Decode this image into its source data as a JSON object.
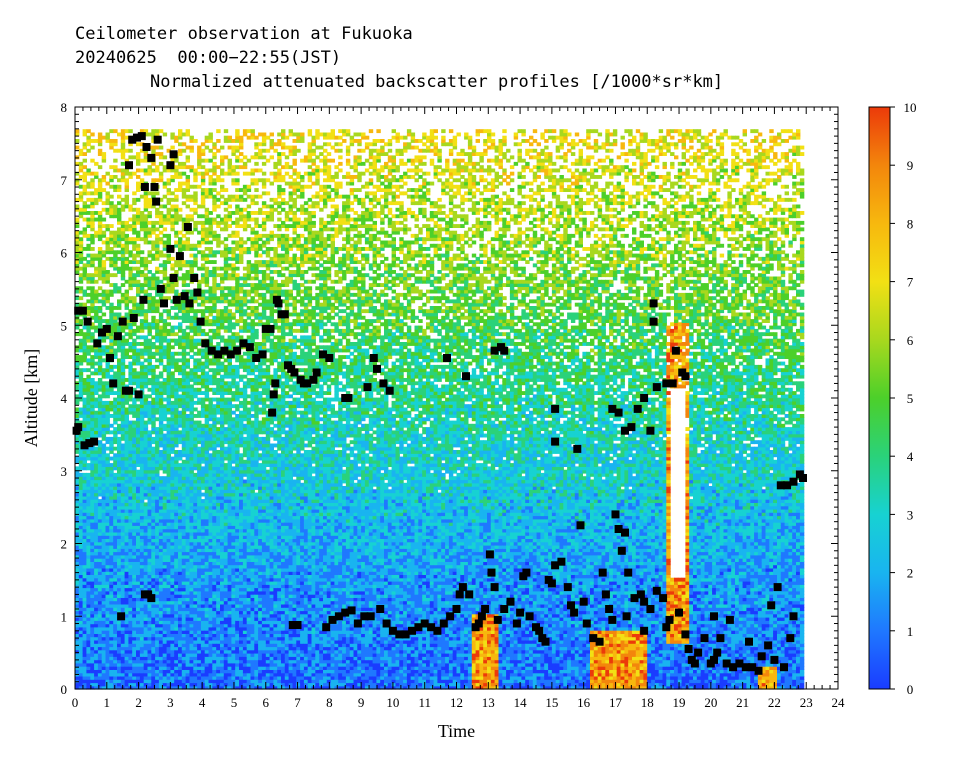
{
  "header": {
    "line1": "Ceilometer observation at Fukuoka",
    "line2": "20240625  00:00−22:55(JST)",
    "line3": "Normalized attenuated backscatter profiles [/1000*sr*km]"
  },
  "chart_data": {
    "type": "heatmap",
    "xlabel": "Time",
    "ylabel": "Altitude [km]",
    "xlim": [
      0,
      24
    ],
    "ylim": [
      0,
      8
    ],
    "x_ticks": [
      "0",
      "1",
      "2",
      "3",
      "4",
      "5",
      "6",
      "7",
      "8",
      "9",
      "10",
      "11",
      "12",
      "13",
      "14",
      "15",
      "16",
      "17",
      "18",
      "19",
      "20",
      "21",
      "22",
      "23",
      "24"
    ],
    "y_ticks": [
      "0",
      "1",
      "2",
      "3",
      "4",
      "5",
      "6",
      "7",
      "8"
    ],
    "data_time_range": [
      0,
      22.92
    ],
    "data_altitude_max": 7.67,
    "colorbar": {
      "min": 0,
      "max": 10,
      "ticks": [
        "0",
        "1",
        "2",
        "3",
        "4",
        "5",
        "6",
        "7",
        "8",
        "9",
        "10"
      ],
      "colors": [
        "#1a3cff",
        "#1f78ff",
        "#19b4f0",
        "#17d2d2",
        "#2ad27a",
        "#4cd02a",
        "#a8d81e",
        "#f2e014",
        "#f7b80e",
        "#f3860c",
        "#ec3a0a"
      ]
    },
    "cloud_base_points": [
      [
        0.05,
        3.55
      ],
      [
        0.1,
        3.6
      ],
      [
        0.3,
        3.35
      ],
      [
        0.45,
        3.38
      ],
      [
        0.6,
        3.4
      ],
      [
        0.1,
        5.2
      ],
      [
        0.25,
        5.2
      ],
      [
        0.4,
        5.05
      ],
      [
        0.7,
        4.75
      ],
      [
        0.85,
        4.9
      ],
      [
        1.0,
        4.95
      ],
      [
        1.1,
        4.55
      ],
      [
        1.2,
        4.2
      ],
      [
        1.35,
        4.85
      ],
      [
        1.5,
        5.05
      ],
      [
        1.6,
        4.1
      ],
      [
        1.7,
        4.1
      ],
      [
        1.85,
        5.1
      ],
      [
        2.0,
        4.05
      ],
      [
        2.15,
        5.35
      ],
      [
        1.8,
        7.55
      ],
      [
        1.95,
        7.58
      ],
      [
        2.1,
        7.6
      ],
      [
        2.25,
        7.45
      ],
      [
        1.7,
        7.2
      ],
      [
        2.4,
        7.3
      ],
      [
        2.6,
        7.55
      ],
      [
        2.2,
        6.9
      ],
      [
        2.5,
        6.9
      ],
      [
        2.55,
        6.7
      ],
      [
        3.0,
        7.2
      ],
      [
        3.1,
        7.35
      ],
      [
        2.7,
        5.5
      ],
      [
        2.8,
        5.3
      ],
      [
        3.0,
        6.05
      ],
      [
        3.1,
        5.65
      ],
      [
        3.2,
        5.35
      ],
      [
        3.3,
        5.95
      ],
      [
        3.45,
        5.4
      ],
      [
        3.55,
        6.35
      ],
      [
        3.6,
        5.3
      ],
      [
        3.75,
        5.65
      ],
      [
        3.85,
        5.45
      ],
      [
        3.95,
        5.05
      ],
      [
        4.1,
        4.75
      ],
      [
        4.3,
        4.65
      ],
      [
        4.5,
        4.6
      ],
      [
        4.7,
        4.65
      ],
      [
        4.9,
        4.6
      ],
      [
        5.1,
        4.65
      ],
      [
        5.3,
        4.75
      ],
      [
        5.5,
        4.7
      ],
      [
        5.7,
        4.55
      ],
      [
        5.9,
        4.6
      ],
      [
        6.0,
        4.95
      ],
      [
        6.15,
        4.95
      ],
      [
        6.2,
        3.8
      ],
      [
        6.25,
        4.05
      ],
      [
        6.3,
        4.2
      ],
      [
        6.35,
        5.35
      ],
      [
        6.4,
        5.3
      ],
      [
        6.5,
        5.15
      ],
      [
        6.6,
        5.15
      ],
      [
        6.7,
        4.45
      ],
      [
        6.8,
        4.4
      ],
      [
        6.9,
        4.35
      ],
      [
        7.1,
        4.25
      ],
      [
        7.3,
        4.2
      ],
      [
        7.5,
        4.25
      ],
      [
        7.6,
        4.35
      ],
      [
        7.8,
        4.6
      ],
      [
        8.0,
        4.55
      ],
      [
        7.2,
        4.2
      ],
      [
        8.6,
        4.0
      ],
      [
        8.5,
        4.0
      ],
      [
        9.2,
        4.15
      ],
      [
        9.4,
        4.55
      ],
      [
        9.5,
        4.4
      ],
      [
        9.7,
        4.2
      ],
      [
        9.9,
        4.1
      ],
      [
        11.7,
        4.55
      ],
      [
        12.3,
        4.3
      ],
      [
        13.2,
        4.65
      ],
      [
        13.4,
        4.7
      ],
      [
        13.5,
        4.65
      ],
      [
        15.1,
        3.85
      ],
      [
        15.1,
        3.4
      ],
      [
        15.8,
        3.3
      ],
      [
        16.9,
        3.85
      ],
      [
        17.1,
        3.8
      ],
      [
        17.3,
        3.55
      ],
      [
        17.5,
        3.6
      ],
      [
        17.7,
        3.85
      ],
      [
        17.9,
        4.0
      ],
      [
        18.1,
        3.55
      ],
      [
        18.3,
        4.15
      ],
      [
        18.2,
        5.3
      ],
      [
        18.2,
        5.05
      ],
      [
        18.6,
        4.2
      ],
      [
        18.8,
        4.2
      ],
      [
        18.9,
        4.65
      ],
      [
        19.1,
        4.35
      ],
      [
        19.2,
        4.3
      ],
      [
        1.45,
        1.0
      ],
      [
        2.3,
        1.3
      ],
      [
        2.4,
        1.25
      ],
      [
        2.2,
        1.3
      ],
      [
        6.85,
        0.88
      ],
      [
        7.0,
        0.88
      ],
      [
        7.9,
        0.85
      ],
      [
        8.1,
        0.95
      ],
      [
        8.3,
        1.0
      ],
      [
        8.5,
        1.05
      ],
      [
        8.7,
        1.08
      ],
      [
        8.9,
        0.9
      ],
      [
        9.1,
        1.0
      ],
      [
        9.3,
        1.0
      ],
      [
        9.6,
        1.1
      ],
      [
        9.8,
        0.9
      ],
      [
        10.0,
        0.8
      ],
      [
        10.2,
        0.75
      ],
      [
        10.4,
        0.75
      ],
      [
        10.6,
        0.8
      ],
      [
        10.8,
        0.85
      ],
      [
        11.0,
        0.9
      ],
      [
        11.2,
        0.85
      ],
      [
        11.4,
        0.8
      ],
      [
        11.6,
        0.9
      ],
      [
        11.8,
        1.0
      ],
      [
        12.0,
        1.1
      ],
      [
        12.1,
        1.3
      ],
      [
        12.2,
        1.4
      ],
      [
        12.4,
        1.3
      ],
      [
        12.6,
        0.85
      ],
      [
        12.7,
        0.9
      ],
      [
        12.8,
        1.0
      ],
      [
        12.9,
        1.1
      ],
      [
        13.05,
        1.85
      ],
      [
        13.1,
        1.6
      ],
      [
        13.2,
        1.4
      ],
      [
        13.3,
        0.95
      ],
      [
        13.5,
        1.1
      ],
      [
        13.7,
        1.2
      ],
      [
        13.9,
        0.9
      ],
      [
        14.0,
        1.05
      ],
      [
        14.1,
        1.55
      ],
      [
        14.2,
        1.6
      ],
      [
        14.3,
        1.0
      ],
      [
        14.5,
        0.85
      ],
      [
        14.6,
        0.8
      ],
      [
        14.7,
        0.7
      ],
      [
        14.8,
        0.65
      ],
      [
        14.9,
        1.5
      ],
      [
        15.0,
        1.45
      ],
      [
        15.1,
        1.7
      ],
      [
        15.3,
        1.75
      ],
      [
        15.5,
        1.4
      ],
      [
        15.6,
        1.15
      ],
      [
        15.7,
        1.05
      ],
      [
        15.9,
        2.25
      ],
      [
        16.0,
        1.2
      ],
      [
        16.1,
        0.9
      ],
      [
        16.3,
        0.7
      ],
      [
        16.5,
        0.65
      ],
      [
        16.6,
        1.6
      ],
      [
        16.7,
        1.3
      ],
      [
        16.8,
        1.1
      ],
      [
        16.9,
        0.95
      ],
      [
        17.0,
        2.4
      ],
      [
        17.1,
        2.2
      ],
      [
        17.2,
        1.9
      ],
      [
        17.3,
        2.15
      ],
      [
        17.4,
        1.6
      ],
      [
        17.6,
        1.25
      ],
      [
        17.8,
        1.3
      ],
      [
        17.9,
        1.2
      ],
      [
        18.1,
        1.1
      ],
      [
        18.3,
        1.35
      ],
      [
        18.5,
        1.25
      ],
      [
        18.6,
        0.85
      ],
      [
        18.7,
        0.95
      ],
      [
        19.0,
        1.05
      ],
      [
        19.2,
        0.75
      ],
      [
        19.3,
        0.55
      ],
      [
        19.4,
        0.4
      ],
      [
        19.5,
        0.35
      ],
      [
        19.6,
        0.5
      ],
      [
        19.8,
        0.7
      ],
      [
        20.0,
        0.35
      ],
      [
        20.1,
        0.4
      ],
      [
        20.2,
        0.5
      ],
      [
        20.3,
        0.7
      ],
      [
        20.5,
        0.35
      ],
      [
        20.7,
        0.3
      ],
      [
        20.9,
        0.35
      ],
      [
        21.1,
        0.3
      ],
      [
        21.3,
        0.3
      ],
      [
        21.5,
        0.25
      ],
      [
        21.6,
        0.45
      ],
      [
        21.8,
        0.6
      ],
      [
        22.0,
        0.4
      ],
      [
        21.9,
        1.15
      ],
      [
        22.1,
        1.4
      ],
      [
        22.3,
        0.3
      ],
      [
        22.5,
        0.7
      ],
      [
        22.6,
        1.0
      ],
      [
        22.2,
        2.8
      ],
      [
        22.4,
        2.8
      ],
      [
        22.6,
        2.85
      ],
      [
        22.8,
        2.95
      ],
      [
        22.9,
        2.9
      ],
      [
        17.35,
        1.0
      ],
      [
        17.9,
        0.8
      ],
      [
        20.1,
        1.0
      ],
      [
        20.6,
        0.95
      ],
      [
        21.2,
        0.65
      ]
    ]
  }
}
